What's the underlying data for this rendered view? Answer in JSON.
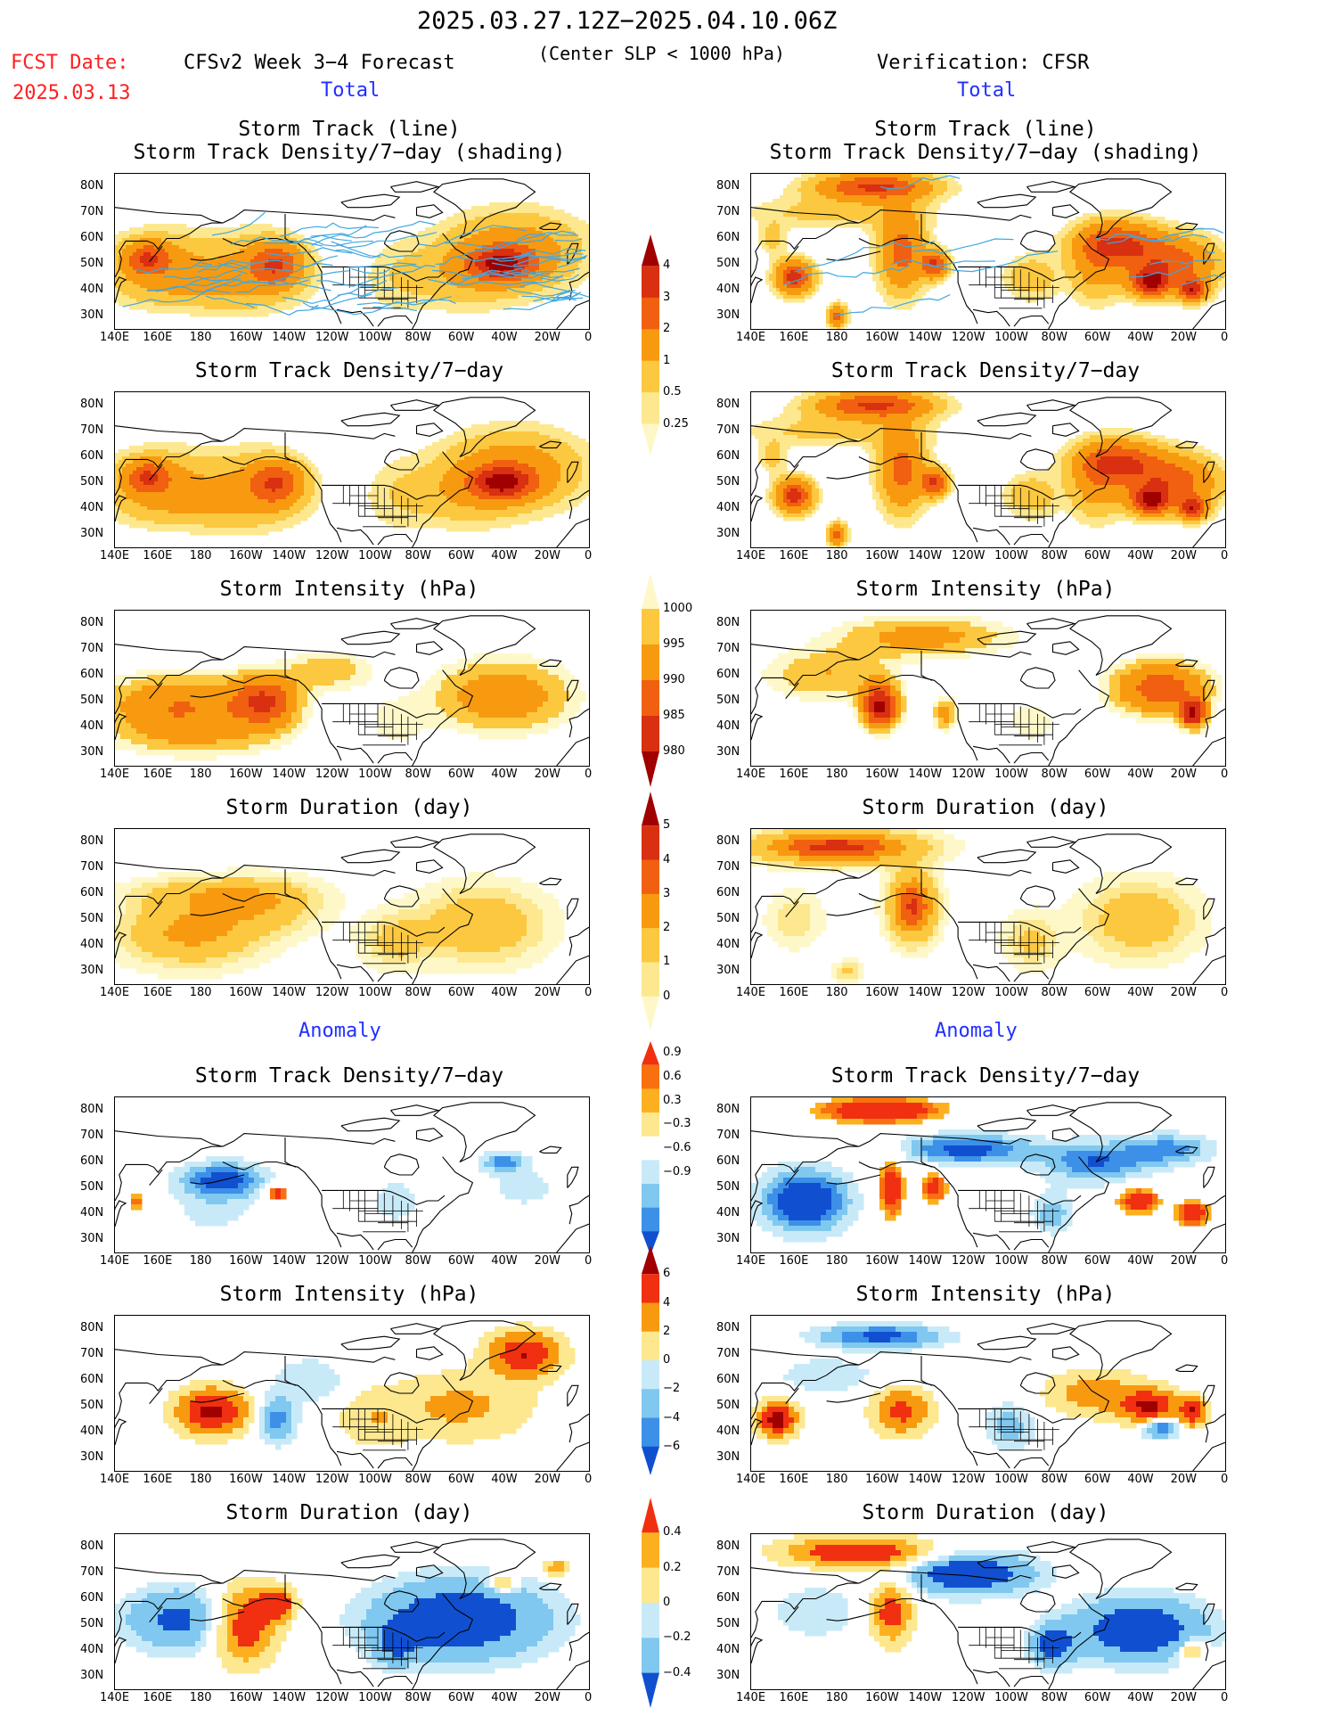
{
  "header": {
    "date_range": "2025.03.27.12Z−2025.04.10.06Z",
    "fcst_label": "FCST Date:",
    "fcst_date": "2025.03.13",
    "left_title": "CFSv2 Week 3−4 Forecast",
    "center_note": "(Center SLP < 1000 hPa)",
    "right_title": "Verification: CFSR"
  },
  "sections": {
    "total": "Total",
    "anomaly": "Anomaly"
  },
  "panel_titles": {
    "track_line": "Storm Track (line)",
    "track_shading": "Storm Track Density/7−day (shading)",
    "density": "Storm Track Density/7−day",
    "intensity": "Storm Intensity (hPa)",
    "duration": "Storm Duration (day)"
  },
  "axes": {
    "lat_labels": [
      "80N",
      "70N",
      "60N",
      "50N",
      "40N",
      "30N"
    ],
    "lon_labels": [
      "140E",
      "160E",
      "180",
      "160W",
      "140W",
      "120W",
      "100W",
      "80W",
      "60W",
      "40W",
      "20W",
      "0"
    ]
  },
  "colorbars": {
    "density": {
      "labels": [
        "4",
        "3",
        "2",
        "1",
        "0.5",
        "0.25"
      ],
      "colors": [
        "#a00000",
        "#d83010",
        "#f06010",
        "#f89a10",
        "#fcc840",
        "#fde890",
        "#fef8c8"
      ]
    },
    "intensity": {
      "labels": [
        "1000",
        "995",
        "990",
        "985",
        "980"
      ],
      "colors": [
        "#fef8c8",
        "#fcc840",
        "#f89a10",
        "#f06010",
        "#d83010",
        "#a00000"
      ]
    },
    "duration": {
      "labels": [
        "5",
        "4",
        "3",
        "2",
        "1",
        "0"
      ],
      "colors": [
        "#a00000",
        "#d83010",
        "#f06010",
        "#f89a10",
        "#fcc840",
        "#fde890",
        "#fef8c8"
      ]
    },
    "density_anom": {
      "labels": [
        "0.9",
        "0.6",
        "0.3",
        "−0.3",
        "−0.6",
        "−0.9"
      ],
      "colors": [
        "#f03010",
        "#f87010",
        "#fcb020",
        "#fde890",
        "#ffffff",
        "#c8eaf8",
        "#80c8f0",
        "#3c90e8",
        "#1050d0"
      ]
    },
    "intensity_anom": {
      "labels": [
        "6",
        "4",
        "2",
        "0",
        "−2",
        "−4",
        "−6"
      ],
      "colors": [
        "#a00000",
        "#f03010",
        "#f89a10",
        "#fde890",
        "#c8eaf8",
        "#80c8f0",
        "#3c90e8",
        "#1050d0"
      ]
    },
    "duration_anom": {
      "labels": [
        "0.4",
        "0.2",
        "0",
        "−0.2",
        "−0.4"
      ],
      "colors": [
        "#f03010",
        "#fcb020",
        "#fde890",
        "#c8eaf8",
        "#80c8f0",
        "#1050d0"
      ]
    }
  }
}
